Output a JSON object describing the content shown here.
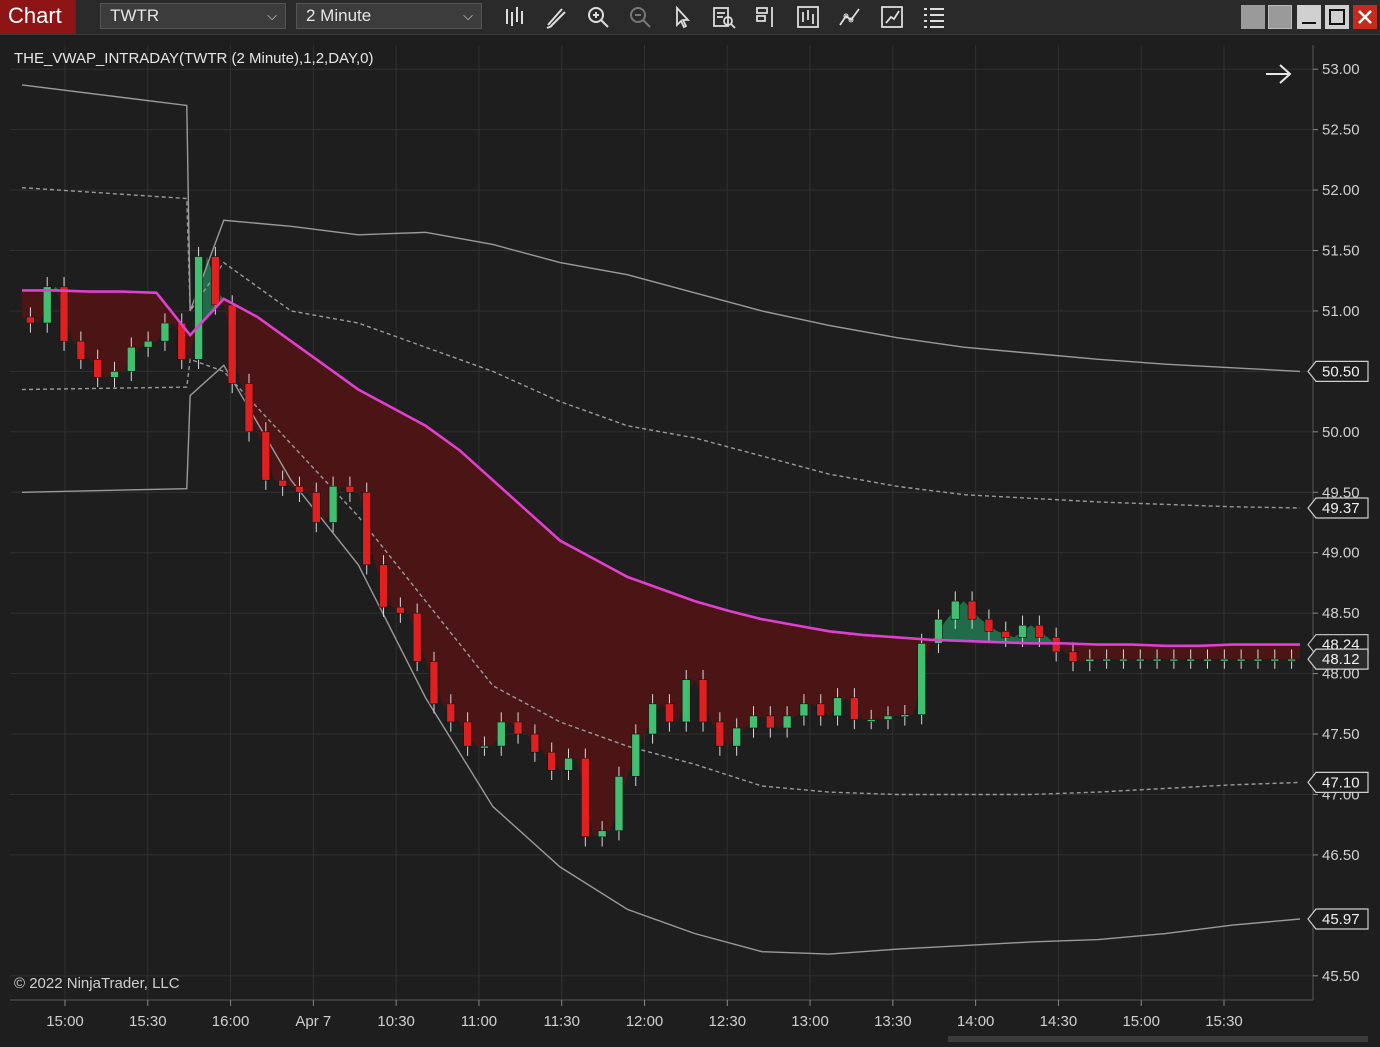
{
  "toolbar": {
    "title": "Chart",
    "instrument": "TWTR",
    "interval": "2 Minute",
    "tools": [
      "bar-type-icon",
      "pencil-icon",
      "zoom-in-icon",
      "zoom-out-icon",
      "pointer-icon",
      "data-box-icon",
      "properties-icon",
      "chart-trader-icon",
      "indicators-icon",
      "strategies-icon",
      "menu-icon"
    ]
  },
  "window_controls": {
    "colors": {
      "close": "#c42b1c"
    }
  },
  "indicator_label": "THE_VWAP_INTRADAY(TWTR (2 Minute),1,2,DAY,0)",
  "copyright": "© 2022 NinjaTrader, LLC",
  "colors": {
    "background": "#1e1e1e",
    "vwap": "#e040d0",
    "fill_below": "#4b1516",
    "fill_above": "#1f6b4a",
    "band": "#9a9a9a",
    "candle_up": "#3fbf6f",
    "candle_down": "#e02020",
    "grid": "#303030"
  },
  "chart_data": {
    "type": "line",
    "title": "THE_VWAP_INTRADAY(TWTR (2 Minute),1,2,DAY,0)",
    "x_tick_labels": [
      "15:00",
      "15:30",
      "16:00",
      "Apr 7",
      "10:30",
      "11:00",
      "11:30",
      "12:00",
      "12:30",
      "13:00",
      "13:30",
      "14:00",
      "14:30",
      "15:00",
      "15:30"
    ],
    "y_tick_labels": [
      "53.00",
      "52.50",
      "52.00",
      "51.50",
      "51.00",
      "50.50",
      "50.00",
      "49.50",
      "49.00",
      "48.50",
      "48.00",
      "47.50",
      "47.00",
      "46.50",
      "45.50"
    ],
    "ylim": [
      45.3,
      53.2
    ],
    "grid": true,
    "price_markers": [
      {
        "label": "50.50",
        "value": 50.5,
        "style": "band"
      },
      {
        "label": "49.37",
        "value": 49.37,
        "style": "band"
      },
      {
        "label": "48.24",
        "value": 48.24,
        "style": "vwap"
      },
      {
        "label": "48.12",
        "value": 48.12,
        "style": "price"
      },
      {
        "label": "47.10",
        "value": 47.1,
        "style": "band"
      },
      {
        "label": "45.97",
        "value": 45.97,
        "style": "band"
      }
    ],
    "series": [
      {
        "key": "vwap",
        "x": [
          0,
          1,
          2,
          3,
          4,
          5,
          6,
          7,
          8,
          9,
          10,
          11,
          12,
          13,
          14,
          15,
          16,
          17,
          18,
          19,
          20,
          21,
          22,
          23,
          24,
          25,
          26,
          27,
          28,
          29,
          30,
          31,
          32,
          33,
          34,
          35,
          36,
          37,
          38
        ],
        "values": [
          51.17,
          51.17,
          51.16,
          51.16,
          51.15,
          50.8,
          51.1,
          50.95,
          50.75,
          50.55,
          50.35,
          50.2,
          50.05,
          49.85,
          49.6,
          49.35,
          49.1,
          48.95,
          48.8,
          48.7,
          48.6,
          48.52,
          48.45,
          48.4,
          48.35,
          48.32,
          48.3,
          48.28,
          48.27,
          48.26,
          48.25,
          48.25,
          48.24,
          48.24,
          48.23,
          48.23,
          48.24,
          48.24,
          48.24
        ]
      },
      {
        "key": "upper_2",
        "x": [
          0,
          4.9,
          5,
          6,
          8,
          10,
          12,
          14,
          16,
          18,
          20,
          22,
          24,
          26,
          28,
          30,
          32,
          34,
          36,
          38
        ],
        "values": [
          52.87,
          52.7,
          51.0,
          51.75,
          51.7,
          51.63,
          51.65,
          51.55,
          51.4,
          51.3,
          51.15,
          51.0,
          50.88,
          50.78,
          50.7,
          50.65,
          50.6,
          50.56,
          50.53,
          50.5
        ]
      },
      {
        "key": "upper_1",
        "x": [
          0,
          4.9,
          5,
          6,
          8,
          10,
          12,
          14,
          16,
          18,
          20,
          22,
          24,
          26,
          28,
          30,
          32,
          34,
          36,
          38
        ],
        "values": [
          52.02,
          51.93,
          51.0,
          51.4,
          51.0,
          50.9,
          50.7,
          50.5,
          50.25,
          50.05,
          49.95,
          49.8,
          49.65,
          49.55,
          49.48,
          49.45,
          49.42,
          49.4,
          49.38,
          49.37
        ]
      },
      {
        "key": "lower_1",
        "x": [
          0,
          4.9,
          5,
          6,
          8,
          10,
          12,
          14,
          16,
          18,
          20,
          22,
          24,
          26,
          28,
          30,
          32,
          34,
          36,
          38
        ],
        "values": [
          50.35,
          50.37,
          50.6,
          50.5,
          49.9,
          49.3,
          48.6,
          47.9,
          47.6,
          47.4,
          47.25,
          47.07,
          47.02,
          47.0,
          47.0,
          47.0,
          47.02,
          47.05,
          47.08,
          47.1
        ]
      },
      {
        "key": "lower_2",
        "x": [
          0,
          4.9,
          5,
          6,
          8,
          10,
          12,
          14,
          16,
          18,
          20,
          22,
          24,
          26,
          28,
          30,
          32,
          34,
          36,
          38
        ],
        "values": [
          49.5,
          49.53,
          50.3,
          50.55,
          49.6,
          48.9,
          47.8,
          46.9,
          46.4,
          46.05,
          45.85,
          45.7,
          45.68,
          45.72,
          45.75,
          45.78,
          45.8,
          45.85,
          45.92,
          45.97
        ]
      },
      {
        "key": "price",
        "x": [
          0,
          0.5,
          1,
          1.5,
          2,
          2.5,
          3,
          3.5,
          4,
          4.5,
          5,
          5.5,
          6,
          6.5,
          7,
          7.5,
          8,
          8.5,
          9,
          9.5,
          10,
          10.5,
          11,
          11.5,
          12,
          12.5,
          13,
          13.5,
          14,
          14.5,
          15,
          15.5,
          16,
          16.5,
          17,
          17.5,
          18,
          18.5,
          19,
          19.5,
          20,
          20.5,
          21,
          21.5,
          22,
          22.5,
          23,
          23.5,
          24,
          24.5,
          25,
          25.5,
          26,
          26.5,
          27,
          27.5,
          28,
          28.5,
          29,
          29.5,
          30,
          30.5,
          31,
          31.5,
          32,
          32.5,
          33,
          33.5,
          34,
          34.5,
          35,
          35.5,
          36,
          36.5,
          37,
          37.5,
          38
        ],
        "values": [
          50.95,
          50.9,
          51.2,
          50.75,
          50.6,
          50.45,
          50.5,
          50.7,
          50.75,
          50.9,
          50.6,
          51.45,
          51.05,
          50.4,
          50.0,
          49.6,
          49.55,
          49.5,
          49.25,
          49.55,
          49.5,
          48.9,
          48.55,
          48.5,
          48.1,
          47.75,
          47.6,
          47.4,
          47.4,
          47.6,
          47.5,
          47.35,
          47.2,
          47.3,
          46.65,
          46.7,
          47.15,
          47.5,
          47.75,
          47.6,
          47.95,
          47.6,
          47.4,
          47.55,
          47.65,
          47.55,
          47.65,
          47.75,
          47.65,
          47.8,
          47.62,
          47.62,
          47.65,
          47.66,
          48.25,
          48.45,
          48.6,
          48.45,
          48.35,
          48.3,
          48.4,
          48.3,
          48.18,
          48.1,
          48.12,
          48.12,
          48.12,
          48.12,
          48.12,
          48.12,
          48.12,
          48.12,
          48.12,
          48.12,
          48.12,
          48.12,
          48.12
        ]
      }
    ]
  }
}
